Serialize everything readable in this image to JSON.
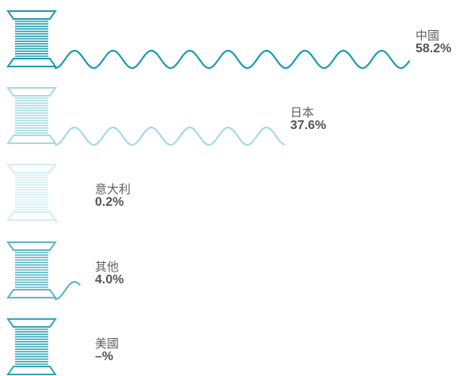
{
  "chart_data": {
    "type": "bar",
    "style": "spool-thread",
    "grid": false,
    "legend": "none",
    "color": "#1a9cb0",
    "categories": [
      "中國",
      "日本",
      "意大利",
      "其他",
      "美國"
    ],
    "display_values": [
      "58.2%",
      "37.6%",
      "0.2%",
      "4.0%",
      "–%"
    ],
    "values": [
      58.2,
      37.6,
      0.2,
      4.0,
      null
    ],
    "opacity": [
      1.0,
      0.38,
      0.18,
      0.72,
      0.9
    ],
    "max_value": 58.2
  }
}
